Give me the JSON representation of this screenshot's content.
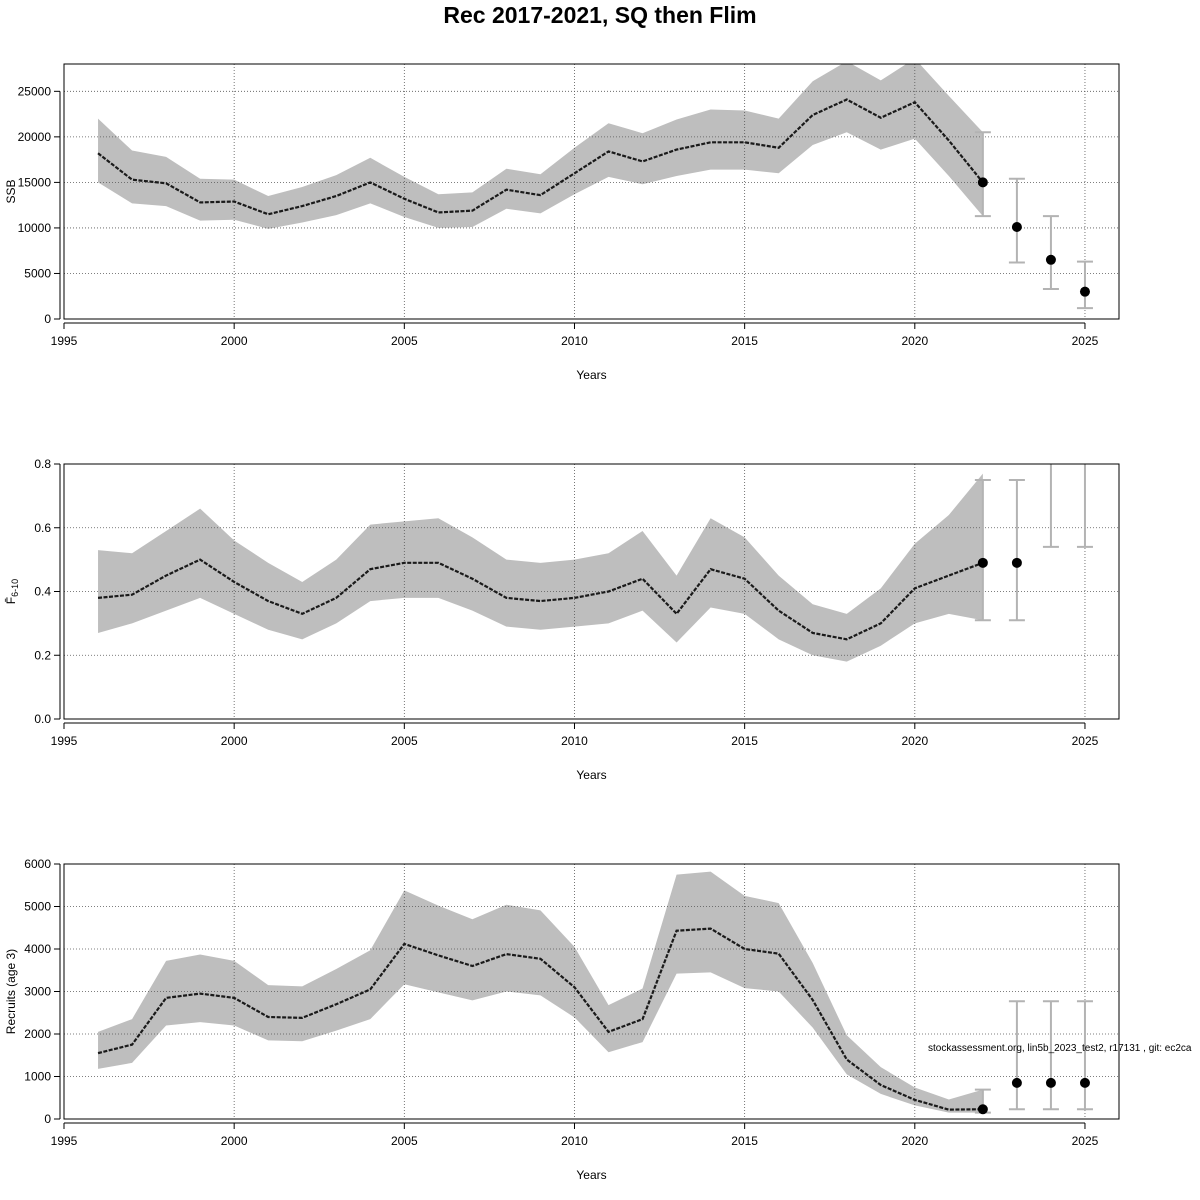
{
  "title": "Rec 2017-2021, SQ then Flim",
  "watermark": "stockassessment.org, lin5b_2023_test2, r17131 , git: ec2ca",
  "colors": {
    "band": "#bebebe",
    "line": "#1a1a1a",
    "errorbar": "#b3b3b3",
    "point": "#000000"
  },
  "chart_data": [
    {
      "type": "line",
      "ylabel": "SSB",
      "xlabel": "Years",
      "xlim": [
        1995,
        2026
      ],
      "ylim": [
        0,
        28000
      ],
      "x_ticks": [
        1995,
        2000,
        2005,
        2010,
        2015,
        2020,
        2025
      ],
      "x_tick_labels": [
        "1995",
        "2000",
        "2005",
        "2010",
        "2015",
        "2020",
        "2025"
      ],
      "y_ticks": [
        0,
        5000,
        10000,
        15000,
        20000,
        25000
      ],
      "y_tick_labels": [
        "0",
        "5000",
        "10000",
        "15000",
        "20000",
        "25000"
      ],
      "grid": true,
      "series": [
        {
          "x": [
            1996,
            1997,
            1998,
            1999,
            2000,
            2001,
            2002,
            2003,
            2004,
            2005,
            2006,
            2007,
            2008,
            2009,
            2010,
            2011,
            2012,
            2013,
            2014,
            2015,
            2016,
            2017,
            2018,
            2019,
            2020,
            2021,
            2022
          ],
          "values": [
            18200,
            15300,
            14900,
            12800,
            12900,
            11500,
            12400,
            13500,
            15000,
            13200,
            11700,
            11900,
            14200,
            13600,
            16000,
            18400,
            17300,
            18600,
            19400,
            19400,
            18800,
            22400,
            24100,
            22100,
            23800,
            19600,
            15000
          ],
          "lower": [
            15000,
            12700,
            12400,
            10800,
            10900,
            9900,
            10600,
            11400,
            12700,
            11200,
            10000,
            10100,
            12100,
            11600,
            13700,
            15600,
            14800,
            15700,
            16400,
            16400,
            16000,
            19100,
            20500,
            18600,
            19800,
            15700,
            11300
          ],
          "upper": [
            22000,
            18500,
            17800,
            15400,
            15300,
            13500,
            14500,
            15800,
            17700,
            15600,
            13700,
            13900,
            16500,
            15900,
            18800,
            21500,
            20400,
            21900,
            23000,
            22900,
            22000,
            26100,
            28300,
            26200,
            28600,
            24500,
            20500
          ]
        }
      ],
      "forecast": {
        "x": [
          2022,
          2023,
          2024,
          2025
        ],
        "values": [
          15000,
          10100,
          6500,
          3000
        ],
        "lower": [
          11300,
          6200,
          3300,
          1200
        ],
        "upper": [
          20500,
          15400,
          11300,
          6300
        ]
      }
    },
    {
      "type": "line",
      "ylabel": "F̄",
      "ylabel_sub": "6-10",
      "xlabel": "Years",
      "xlim": [
        1995,
        2026
      ],
      "ylim": [
        0,
        0.8
      ],
      "x_ticks": [
        1995,
        2000,
        2005,
        2010,
        2015,
        2020,
        2025
      ],
      "x_tick_labels": [
        "1995",
        "2000",
        "2005",
        "2010",
        "2015",
        "2020",
        "2025"
      ],
      "y_ticks": [
        0,
        0.2,
        0.4,
        0.6,
        0.8
      ],
      "y_tick_labels": [
        "0.0",
        "0.2",
        "0.4",
        "0.6",
        "0.8"
      ],
      "grid": true,
      "series": [
        {
          "x": [
            1996,
            1997,
            1998,
            1999,
            2000,
            2001,
            2002,
            2003,
            2004,
            2005,
            2006,
            2007,
            2008,
            2009,
            2010,
            2011,
            2012,
            2013,
            2014,
            2015,
            2016,
            2017,
            2018,
            2019,
            2020,
            2021,
            2022
          ],
          "values": [
            0.38,
            0.39,
            0.45,
            0.5,
            0.43,
            0.37,
            0.33,
            0.38,
            0.47,
            0.49,
            0.49,
            0.44,
            0.38,
            0.37,
            0.38,
            0.4,
            0.44,
            0.33,
            0.47,
            0.44,
            0.34,
            0.27,
            0.25,
            0.3,
            0.41,
            0.45,
            0.49
          ],
          "lower": [
            0.27,
            0.3,
            0.34,
            0.38,
            0.33,
            0.28,
            0.25,
            0.3,
            0.37,
            0.38,
            0.38,
            0.34,
            0.29,
            0.28,
            0.29,
            0.3,
            0.34,
            0.24,
            0.35,
            0.33,
            0.25,
            0.2,
            0.18,
            0.23,
            0.3,
            0.33,
            0.31
          ],
          "upper": [
            0.53,
            0.52,
            0.59,
            0.66,
            0.56,
            0.49,
            0.43,
            0.5,
            0.61,
            0.62,
            0.63,
            0.57,
            0.5,
            0.49,
            0.5,
            0.52,
            0.59,
            0.45,
            0.63,
            0.57,
            0.45,
            0.36,
            0.33,
            0.41,
            0.55,
            0.64,
            0.77
          ]
        }
      ],
      "forecast": {
        "x": [
          2022,
          2023,
          2024,
          2025
        ],
        "values": [
          0.49,
          0.49,
          null,
          null
        ],
        "lower": [
          0.31,
          0.31,
          0.54,
          0.54
        ],
        "upper": [
          0.75,
          0.75,
          0.85,
          0.85
        ]
      }
    },
    {
      "type": "line",
      "ylabel": "Recruits (age 3)",
      "xlabel": "Years",
      "xlim": [
        1995,
        2026
      ],
      "ylim": [
        0,
        6000
      ],
      "x_ticks": [
        1995,
        2000,
        2005,
        2010,
        2015,
        2020,
        2025
      ],
      "x_tick_labels": [
        "1995",
        "2000",
        "2005",
        "2010",
        "2015",
        "2020",
        "2025"
      ],
      "y_ticks": [
        0,
        1000,
        2000,
        3000,
        4000,
        5000,
        6000
      ],
      "y_tick_labels": [
        "0",
        "1000",
        "2000",
        "3000",
        "4000",
        "5000",
        "6000"
      ],
      "grid": true,
      "series": [
        {
          "x": [
            1996,
            1997,
            1998,
            1999,
            2000,
            2001,
            2002,
            2003,
            2004,
            2005,
            2006,
            2007,
            2008,
            2009,
            2010,
            2011,
            2012,
            2013,
            2014,
            2015,
            2016,
            2017,
            2018,
            2019,
            2020,
            2021,
            2022
          ],
          "values": [
            1550,
            1750,
            2850,
            2950,
            2850,
            2400,
            2380,
            2700,
            3050,
            4120,
            3850,
            3600,
            3880,
            3770,
            3100,
            2050,
            2350,
            4430,
            4480,
            4000,
            3890,
            2800,
            1400,
            800,
            450,
            220,
            230
          ],
          "lower": [
            1180,
            1320,
            2200,
            2280,
            2200,
            1850,
            1830,
            2080,
            2350,
            3170,
            2980,
            2790,
            3000,
            2910,
            2390,
            1570,
            1810,
            3420,
            3450,
            3080,
            3000,
            2150,
            1050,
            590,
            320,
            150,
            150
          ],
          "upper": [
            2050,
            2350,
            3720,
            3870,
            3720,
            3150,
            3120,
            3530,
            3970,
            5380,
            5020,
            4700,
            5040,
            4910,
            4050,
            2680,
            3070,
            5750,
            5820,
            5250,
            5080,
            3670,
            1970,
            1220,
            740,
            460,
            690
          ]
        }
      ],
      "forecast": {
        "x": [
          2022,
          2023,
          2024,
          2025
        ],
        "values": [
          230,
          850,
          850,
          850
        ],
        "lower": [
          150,
          230,
          230,
          230
        ],
        "upper": [
          690,
          2770,
          2770,
          2770
        ]
      }
    }
  ]
}
